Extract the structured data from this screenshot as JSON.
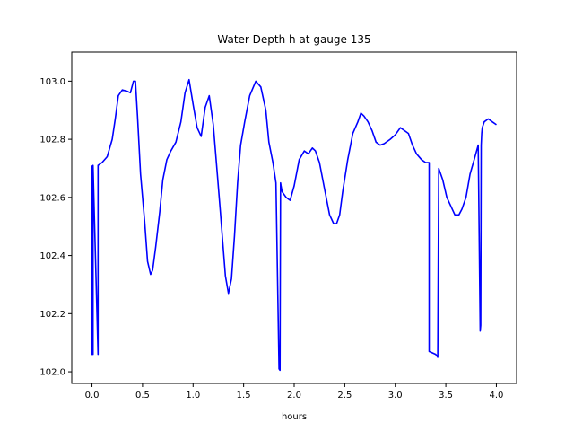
{
  "chart_data": {
    "type": "line",
    "title": "Water Depth h at gauge 135",
    "xlabel": "hours",
    "ylabel": "",
    "xlim": [
      -0.2,
      4.2
    ],
    "ylim": [
      101.96,
      103.1
    ],
    "xticks": [
      0.0,
      0.5,
      1.0,
      1.5,
      2.0,
      2.5,
      3.0,
      3.5,
      4.0
    ],
    "xtick_labels": [
      "0.0",
      "0.5",
      "1.0",
      "1.5",
      "2.0",
      "2.5",
      "3.0",
      "3.5",
      "4.0"
    ],
    "yticks": [
      102.0,
      102.2,
      102.4,
      102.6,
      102.8,
      103.0
    ],
    "ytick_labels": [
      "102.0",
      "102.2",
      "102.4",
      "102.6",
      "102.8",
      "103.0"
    ],
    "grid": false,
    "series": [
      {
        "name": "",
        "color": "#0000ff",
        "x": [
          0.0,
          0.0,
          0.01,
          0.01,
          0.06,
          0.06,
          0.1,
          0.15,
          0.2,
          0.23,
          0.26,
          0.3,
          0.35,
          0.38,
          0.41,
          0.43,
          0.45,
          0.48,
          0.52,
          0.55,
          0.58,
          0.6,
          0.63,
          0.67,
          0.7,
          0.74,
          0.78,
          0.83,
          0.88,
          0.92,
          0.96,
          1.0,
          1.04,
          1.08,
          1.12,
          1.16,
          1.2,
          1.24,
          1.27,
          1.32,
          1.35,
          1.38,
          1.41,
          1.44,
          1.47,
          1.51,
          1.56,
          1.62,
          1.67,
          1.72,
          1.75,
          1.79,
          1.82,
          1.85,
          1.86,
          1.865,
          1.87,
          1.88,
          1.92,
          1.96,
          2.0,
          2.05,
          2.1,
          2.14,
          2.18,
          2.21,
          2.25,
          2.3,
          2.35,
          2.39,
          2.42,
          2.45,
          2.48,
          2.53,
          2.58,
          2.63,
          2.66,
          2.69,
          2.73,
          2.77,
          2.81,
          2.85,
          2.89,
          2.95,
          3.0,
          3.05,
          3.09,
          3.13,
          3.17,
          3.21,
          3.26,
          3.3,
          3.335,
          3.335,
          3.4,
          3.42,
          3.43,
          3.47,
          3.51,
          3.55,
          3.59,
          3.63,
          3.66,
          3.7,
          3.74,
          3.78,
          3.82,
          3.84,
          3.845,
          3.85,
          3.855,
          3.86,
          3.88,
          3.92,
          3.96,
          4.0
        ],
        "y": [
          102.71,
          102.06,
          102.06,
          102.71,
          102.06,
          102.71,
          102.72,
          102.74,
          102.8,
          102.87,
          102.95,
          102.97,
          102.965,
          102.96,
          103.0,
          103.0,
          102.88,
          102.68,
          102.52,
          102.38,
          102.335,
          102.35,
          102.43,
          102.55,
          102.66,
          102.73,
          102.76,
          102.79,
          102.86,
          102.96,
          103.005,
          102.92,
          102.84,
          102.81,
          102.91,
          102.95,
          102.85,
          102.68,
          102.55,
          102.33,
          102.27,
          102.32,
          102.47,
          102.65,
          102.78,
          102.86,
          102.95,
          103.0,
          102.98,
          102.9,
          102.79,
          102.72,
          102.65,
          102.01,
          102.005,
          102.65,
          102.64,
          102.62,
          102.6,
          102.59,
          102.64,
          102.73,
          102.76,
          102.75,
          102.77,
          102.76,
          102.72,
          102.63,
          102.54,
          102.51,
          102.51,
          102.54,
          102.62,
          102.73,
          102.82,
          102.86,
          102.89,
          102.88,
          102.86,
          102.83,
          102.79,
          102.78,
          102.785,
          102.8,
          102.815,
          102.84,
          102.83,
          102.82,
          102.78,
          102.75,
          102.73,
          102.72,
          102.72,
          102.07,
          102.06,
          102.05,
          102.7,
          102.66,
          102.6,
          102.57,
          102.54,
          102.54,
          102.56,
          102.6,
          102.68,
          102.73,
          102.78,
          102.14,
          102.16,
          102.78,
          102.82,
          102.84,
          102.86,
          102.87,
          102.86,
          102.85
        ]
      }
    ]
  }
}
